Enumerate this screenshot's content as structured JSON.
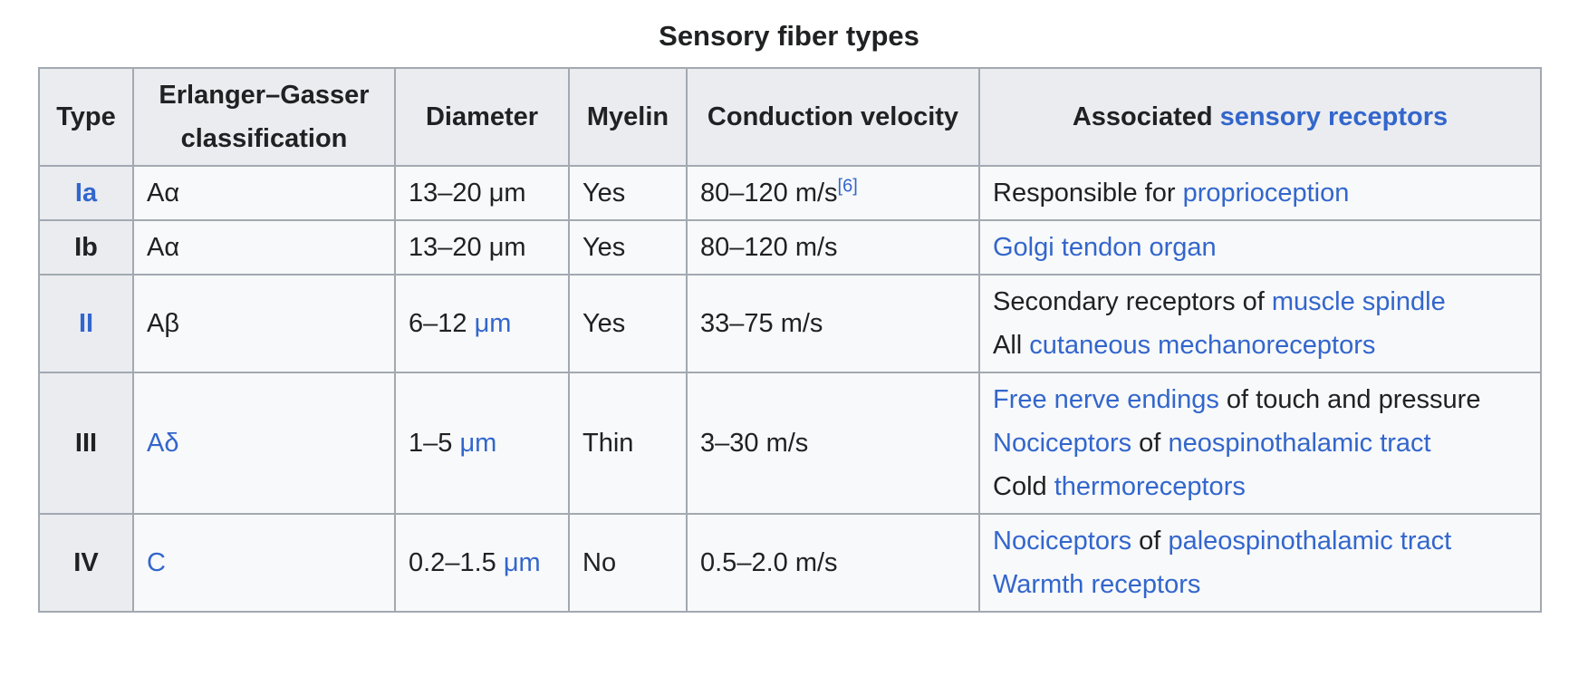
{
  "page_title": "Sensory fiber types",
  "colors": {
    "link_blue": "#3366cc",
    "text": "#202122",
    "header_background": "#eaecf0",
    "cell_background": "#f8f9fa",
    "border": "#a2a9b1"
  },
  "table": {
    "columns": [
      {
        "key": "type",
        "label_segments": [
          {
            "text": "Type"
          }
        ]
      },
      {
        "key": "classification",
        "label_segments": [
          {
            "text": "Erlanger–Gasser classification"
          }
        ]
      },
      {
        "key": "diameter",
        "label_segments": [
          {
            "text": "Diameter"
          }
        ]
      },
      {
        "key": "myelin",
        "label_segments": [
          {
            "text": "Myelin"
          }
        ]
      },
      {
        "key": "velocity",
        "label_segments": [
          {
            "text": "Conduction velocity"
          }
        ]
      },
      {
        "key": "receptors",
        "label_segments": [
          {
            "text": "Associated "
          },
          {
            "text": "sensory receptors",
            "link": true
          }
        ]
      }
    ],
    "rows": [
      {
        "type": [
          {
            "text": "Ia",
            "link": true
          }
        ],
        "classification": [
          {
            "text": "Aα"
          }
        ],
        "diameter": [
          {
            "text": "13–20 μm"
          }
        ],
        "myelin": [
          {
            "text": "Yes"
          }
        ],
        "velocity": [
          {
            "text": "80–120 m/s"
          },
          {
            "text": "[6]",
            "link": true,
            "sup": true
          }
        ],
        "receptors": [
          [
            {
              "text": "Responsible for "
            },
            {
              "text": "proprioception",
              "link": true
            }
          ]
        ]
      },
      {
        "type": [
          {
            "text": "Ib"
          }
        ],
        "classification": [
          {
            "text": "Aα"
          }
        ],
        "diameter": [
          {
            "text": "13–20 μm"
          }
        ],
        "myelin": [
          {
            "text": "Yes"
          }
        ],
        "velocity": [
          {
            "text": "80–120 m/s"
          }
        ],
        "receptors": [
          [
            {
              "text": "Golgi tendon organ",
              "link": true
            }
          ]
        ]
      },
      {
        "type": [
          {
            "text": "II",
            "link": true
          }
        ],
        "classification": [
          {
            "text": "Aβ"
          }
        ],
        "diameter": [
          {
            "text": "6–12 "
          },
          {
            "text": "μm",
            "link": true
          }
        ],
        "myelin": [
          {
            "text": "Yes"
          }
        ],
        "velocity": [
          {
            "text": "33–75 m/s"
          }
        ],
        "receptors": [
          [
            {
              "text": "Secondary receptors of "
            },
            {
              "text": "muscle spindle",
              "link": true
            }
          ],
          [
            {
              "text": "All "
            },
            {
              "text": "cutaneous mechanoreceptors",
              "link": true
            }
          ]
        ]
      },
      {
        "type": [
          {
            "text": "III"
          }
        ],
        "classification": [
          {
            "text": "Aδ",
            "link": true
          }
        ],
        "diameter": [
          {
            "text": "1–5 "
          },
          {
            "text": "μm",
            "link": true
          }
        ],
        "myelin": [
          {
            "text": "Thin"
          }
        ],
        "velocity": [
          {
            "text": "3–30 m/s"
          }
        ],
        "receptors": [
          [
            {
              "text": "Free nerve endings",
              "link": true
            },
            {
              "text": " of touch and pressure"
            }
          ],
          [
            {
              "text": "Nociceptors",
              "link": true
            },
            {
              "text": " of "
            },
            {
              "text": "neospinothalamic tract",
              "link": true
            }
          ],
          [
            {
              "text": "Cold "
            },
            {
              "text": "thermoreceptors",
              "link": true
            }
          ]
        ]
      },
      {
        "type": [
          {
            "text": "IV"
          }
        ],
        "classification": [
          {
            "text": "C",
            "link": true
          }
        ],
        "diameter": [
          {
            "text": "0.2–1.5 "
          },
          {
            "text": "μm",
            "link": true
          }
        ],
        "myelin": [
          {
            "text": "No"
          }
        ],
        "velocity": [
          {
            "text": "0.5–2.0 m/s"
          }
        ],
        "receptors": [
          [
            {
              "text": "Nociceptors",
              "link": true
            },
            {
              "text": " of "
            },
            {
              "text": "paleospinothalamic tract",
              "link": true
            }
          ],
          [
            {
              "text": "Warmth receptors",
              "link": true
            }
          ]
        ]
      }
    ]
  }
}
